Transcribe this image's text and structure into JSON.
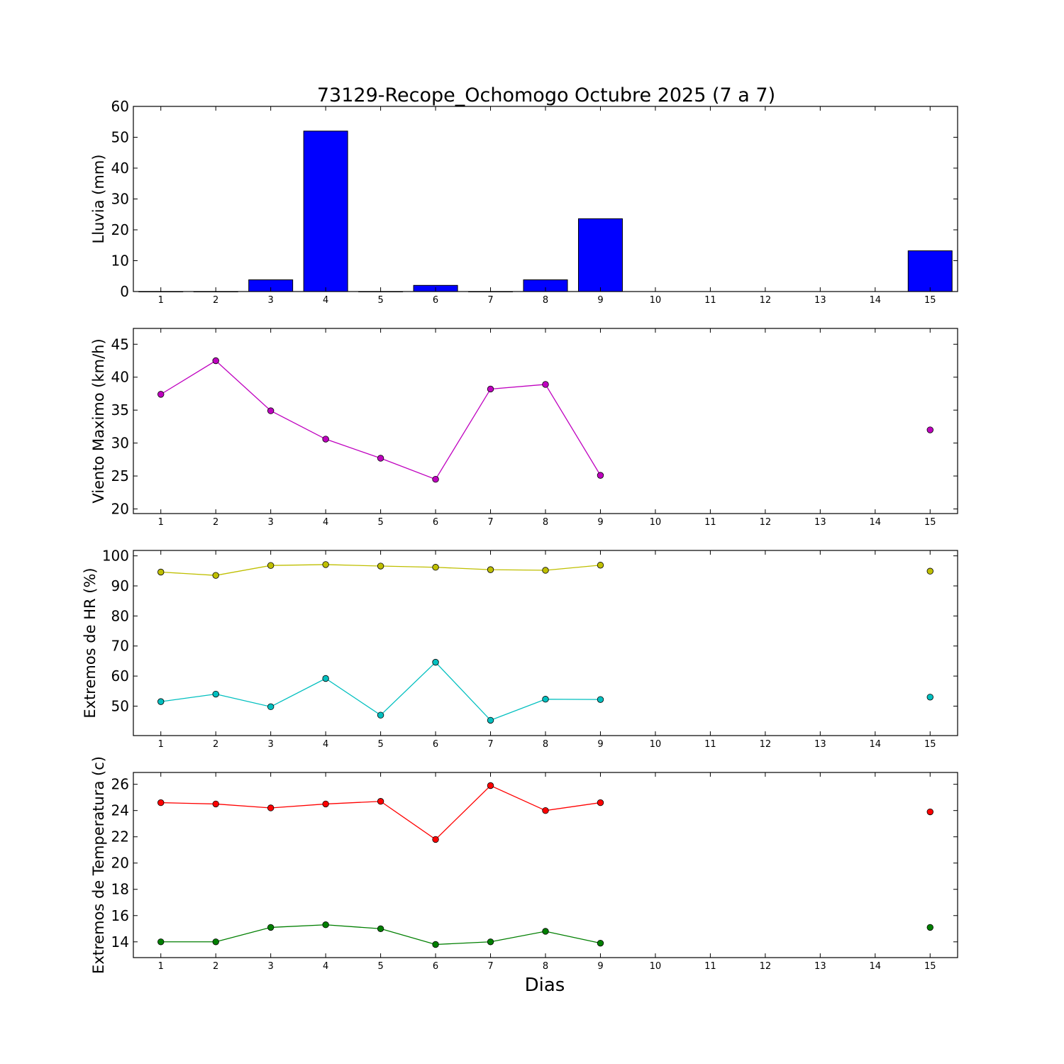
{
  "chart_data": {
    "title": "73129-Recope_Ochomogo Octubre 2025  (7 a 7)",
    "xlabel": "Dias",
    "x_ticks": [
      1,
      2,
      3,
      4,
      5,
      6,
      7,
      8,
      9,
      10,
      11,
      12,
      13,
      14,
      15
    ],
    "xlim": [
      0.5,
      15.5
    ],
    "panels": [
      {
        "type": "bar",
        "ylabel": "Lluvia (mm)",
        "ylim": [
          0,
          60
        ],
        "y_ticks": [
          0,
          10,
          20,
          30,
          40,
          50,
          60
        ],
        "categories": [
          1,
          2,
          3,
          4,
          5,
          6,
          7,
          8,
          9,
          10,
          11,
          12,
          13,
          14,
          15
        ],
        "values": [
          0,
          0,
          3.8,
          52,
          0,
          2,
          0,
          3.8,
          23.6,
          null,
          null,
          null,
          null,
          null,
          13.2
        ],
        "color": "#0000ff"
      },
      {
        "type": "line",
        "ylabel": "Viento Maximo (km/h)",
        "ylim": [
          19.3,
          47.4
        ],
        "y_ticks": [
          20,
          25,
          30,
          35,
          40,
          45
        ],
        "series": [
          {
            "x": [
              1,
              2,
              3,
              4,
              5,
              6,
              7,
              8,
              9,
              15
            ],
            "values": [
              37.4,
              42.5,
              34.9,
              30.6,
              27.7,
              24.5,
              38.2,
              38.9,
              25.1,
              32.0
            ],
            "color": "#bf00bf"
          }
        ]
      },
      {
        "type": "line",
        "ylabel": "Extremos de HR (%)",
        "ylim": [
          40.2,
          101.8
        ],
        "y_ticks": [
          50,
          60,
          70,
          80,
          90,
          100
        ],
        "series": [
          {
            "x": [
              1,
              2,
              3,
              4,
              5,
              6,
              7,
              8,
              9,
              15
            ],
            "values": [
              94.6,
              93.5,
              96.8,
              97.1,
              96.6,
              96.2,
              95.4,
              95.2,
              96.9,
              94.9
            ],
            "color": "#bfbf00"
          },
          {
            "x": [
              1,
              2,
              3,
              4,
              5,
              6,
              7,
              8,
              9,
              15
            ],
            "values": [
              51.5,
              54.0,
              49.8,
              59.2,
              47.0,
              64.6,
              45.3,
              52.3,
              52.2,
              53.0
            ],
            "color": "#00bfbf"
          }
        ]
      },
      {
        "type": "line",
        "ylabel": "Extremos de Temperatura (c)",
        "ylim": [
          12.8,
          26.9
        ],
        "y_ticks": [
          14,
          16,
          18,
          20,
          22,
          24,
          26
        ],
        "series": [
          {
            "x": [
              1,
              2,
              3,
              4,
              5,
              6,
              7,
              8,
              9,
              15
            ],
            "values": [
              24.6,
              24.5,
              24.2,
              24.5,
              24.7,
              21.8,
              25.9,
              24.0,
              24.6,
              23.9
            ],
            "color": "#ff0000"
          },
          {
            "x": [
              1,
              2,
              3,
              4,
              5,
              6,
              7,
              8,
              9,
              15
            ],
            "values": [
              14.0,
              14.0,
              15.1,
              15.3,
              15.0,
              13.8,
              14.0,
              14.8,
              13.9,
              15.1
            ],
            "color": "#007f00"
          }
        ]
      }
    ]
  }
}
